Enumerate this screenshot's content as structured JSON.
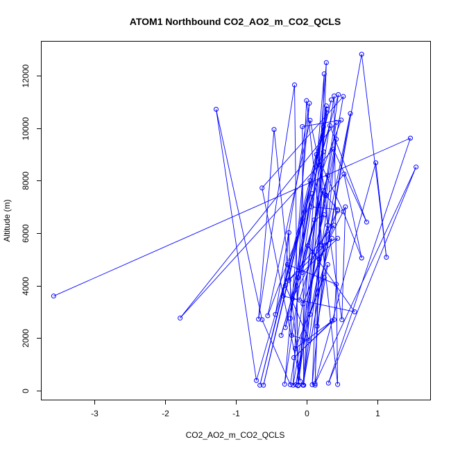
{
  "chart_data": {
    "type": "line",
    "title": "ATOM1 Northbound CO2_AO2_m_CO2_QCLS",
    "xlabel": "CO2_AO2_m_CO2_QCLS",
    "ylabel": "Altitude (m)",
    "xlim": [
      -3.75,
      1.75
    ],
    "ylim": [
      -350,
      13300
    ],
    "xticks": [
      -3,
      -2,
      -1,
      0,
      1
    ],
    "yticks": [
      0,
      2000,
      4000,
      6000,
      8000,
      10000,
      12000
    ],
    "grid": false,
    "legend": "none",
    "series_color": "#0000ff",
    "marker": "open-circle",
    "points": [
      [
        -3.58,
        3600
      ],
      [
        1.47,
        9620
      ],
      [
        0.31,
        280
      ],
      [
        1.55,
        8520
      ],
      [
        0.12,
        260
      ],
      [
        0.98,
        8680
      ],
      [
        1.13,
        5080
      ],
      [
        0.78,
        12820
      ],
      [
        -0.05,
        210
      ],
      [
        0.28,
        12500
      ],
      [
        0.12,
        200
      ],
      [
        0.25,
        12070
      ],
      [
        -0.12,
        180
      ],
      [
        -0.17,
        11650
      ],
      [
        -0.68,
        2720
      ],
      [
        -0.46,
        9950
      ],
      [
        -0.09,
        350
      ],
      [
        -0.63,
        7720
      ],
      [
        0.52,
        11210
      ],
      [
        -0.19,
        200
      ],
      [
        0.0,
        11050
      ],
      [
        0.44,
        230
      ],
      [
        0.39,
        11230
      ],
      [
        -0.23,
        220
      ],
      [
        -0.63,
        2700
      ],
      [
        -1.28,
        10720
      ],
      [
        -0.71,
        380
      ],
      [
        0.45,
        11280
      ],
      [
        -0.12,
        200
      ],
      [
        0.29,
        10720
      ],
      [
        -0.66,
        200
      ],
      [
        0.35,
        11080
      ],
      [
        -0.61,
        200
      ],
      [
        0.24,
        10050
      ],
      [
        0.08,
        220
      ],
      [
        0.42,
        9580
      ],
      [
        -0.05,
        200
      ],
      [
        0.62,
        10560
      ],
      [
        -0.15,
        220
      ],
      [
        0.42,
        10220
      ],
      [
        -1.79,
        2760
      ],
      [
        0.38,
        9200
      ],
      [
        0.85,
        6420
      ],
      [
        0.33,
        10100
      ],
      [
        -0.44,
        2900
      ],
      [
        0.04,
        10950
      ],
      [
        -0.31,
        240
      ],
      [
        0.28,
        10850
      ],
      [
        -0.04,
        200
      ],
      [
        -0.06,
        10060
      ],
      [
        0.49,
        10310
      ],
      [
        -0.55,
        2850
      ],
      [
        0.05,
        10300
      ],
      [
        0.28,
        7420
      ],
      [
        0.53,
        8250
      ],
      [
        0.78,
        5050
      ],
      [
        0.52,
        6820
      ],
      [
        0.14,
        9000
      ],
      [
        -0.12,
        4300
      ],
      [
        0.05,
        8000
      ],
      [
        -0.23,
        2750
      ],
      [
        0.08,
        7500
      ],
      [
        -0.3,
        2400
      ],
      [
        0.3,
        8200
      ],
      [
        -0.36,
        2100
      ],
      [
        0.23,
        7620
      ],
      [
        0.5,
        2700
      ],
      [
        0.55,
        7000
      ],
      [
        0.18,
        5000
      ],
      [
        0.02,
        5520
      ],
      [
        0.68,
        3000
      ],
      [
        -0.2,
        3500
      ],
      [
        0.44,
        6850
      ],
      [
        -0.05,
        3300
      ],
      [
        0.39,
        6300
      ],
      [
        -0.25,
        4200
      ],
      [
        0.36,
        5800
      ],
      [
        0.05,
        2900
      ],
      [
        0.3,
        4800
      ],
      [
        0.15,
        2450
      ],
      [
        0.25,
        4300
      ],
      [
        -0.16,
        1600
      ],
      [
        0.36,
        2650
      ],
      [
        -0.18,
        1250
      ],
      [
        0.39,
        2700
      ],
      [
        0.42,
        4050
      ],
      [
        -0.27,
        4800
      ],
      [
        -0.3,
        4000
      ],
      [
        0.04,
        1900
      ],
      [
        -0.21,
        2100
      ],
      [
        -0.25,
        6020
      ],
      [
        -0.33,
        3600
      ],
      [
        -0.1,
        3450
      ],
      [
        0.25,
        6700
      ],
      [
        0.11,
        6500
      ],
      [
        -0.06,
        4500
      ],
      [
        0.44,
        5800
      ],
      [
        0.21,
        5550
      ],
      [
        0.3,
        6300
      ],
      [
        0.27,
        7450
      ],
      [
        0.44,
        6900
      ],
      [
        0.07,
        7000
      ],
      [
        0.24,
        9100
      ],
      [
        0.18,
        8600
      ]
    ]
  }
}
